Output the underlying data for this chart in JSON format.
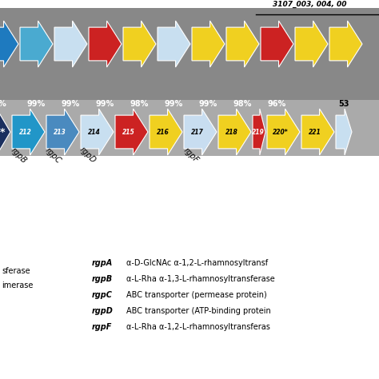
{
  "top_label": "3107_003, 004, 00",
  "top_pct": "53",
  "similarity_percents_row1": [
    "%",
    "99%",
    "99%",
    "99%",
    "98%",
    "99%",
    "99%",
    "98%",
    "96%"
  ],
  "row1_colors": [
    "#1e7abf",
    "#4aaad0",
    "#c8dff0",
    "#cc2222",
    "#f0d020",
    "#c8dff0",
    "#f0d020",
    "#f0d020",
    "#cc2222",
    "#f0d020",
    "#f0d020"
  ],
  "row2_dark_color": "#1a2f5f",
  "row2_colors": [
    "#2196c8",
    "#4a8abf",
    "#c8dff0",
    "#cc2222",
    "#f0d020",
    "#c8ddf0",
    "#f0d020",
    "#cc2222",
    "#f0d020",
    "#f0d020",
    "#c8dff0"
  ],
  "row2_nums": [
    "212",
    "213",
    "214",
    "215",
    "216",
    "217",
    "218",
    "219",
    "220*",
    "221",
    ""
  ],
  "row2_num_colors": [
    "white",
    "white",
    "black",
    "white",
    "black",
    "black",
    "black",
    "white",
    "black",
    "black",
    "black"
  ],
  "gene_label_data": [
    [
      0,
      "rgpB"
    ],
    [
      1,
      "rgpC"
    ],
    [
      2,
      "rgpD"
    ],
    [
      5,
      "rgpF"
    ]
  ],
  "legend_left": [
    "sferase",
    "imerase"
  ],
  "legend_items": [
    [
      "rgpA",
      "α-D-GlcNAc α-1,2-L-rhamnosyltransf"
    ],
    [
      "rgpB",
      "α-L-Rha α-1,3-L-rhamnosyltransferase"
    ],
    [
      "rgpC",
      "ABC transporter (permease protein)"
    ],
    [
      "rgpD",
      "ABC transporter (ATP-binding protein"
    ],
    [
      "rgpF",
      "α-L-Rha α-1,2-L-rhamnosyltransferas"
    ]
  ],
  "bg_gray_dark": "#888888",
  "bg_gray_mid": "#999999",
  "bg_gray_light": "#aaaaaa"
}
